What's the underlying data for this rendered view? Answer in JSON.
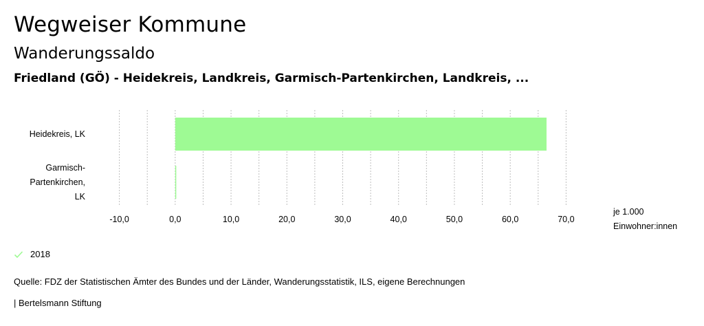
{
  "header": {
    "title": "Wegweiser Kommune",
    "subtitle": "Wanderungssaldo",
    "region": "Friedland (GÖ) - Heidekreis, Landkreis, Garmisch-Partenkirchen, Landkreis, ..."
  },
  "chart_data": {
    "type": "bar",
    "orientation": "horizontal",
    "categories": [
      "Heidekreis, LK",
      "Garmisch-Partenkirchen, LK"
    ],
    "category_label_lines": [
      [
        "Heidekreis, LK"
      ],
      [
        "Garmisch-",
        "Partenkirchen,",
        "LK"
      ]
    ],
    "series": [
      {
        "name": "2018",
        "values": [
          66.5,
          0.1
        ],
        "color": "#9efa94"
      }
    ],
    "xlim": [
      -15,
      75
    ],
    "xticks": [
      -10,
      0,
      10,
      20,
      30,
      40,
      50,
      60,
      70
    ],
    "xtick_labels": [
      "-10,0",
      "0,0",
      "10,0",
      "20,0",
      "30,0",
      "40,0",
      "50,0",
      "60,0",
      "70,0"
    ],
    "unit_label_lines": [
      "je 1.000",
      "Einwohner:innen"
    ],
    "grid": "vertical dotted"
  },
  "legend": {
    "label": "2018",
    "color": "#9efa94",
    "icon": "check-icon"
  },
  "footer": {
    "source": "Quelle: FDZ der Statistischen Ämter des Bundes und der Länder, Wanderungsstatistik, ILS, eigene Berechnungen",
    "credit": "| Bertelsmann Stiftung"
  }
}
